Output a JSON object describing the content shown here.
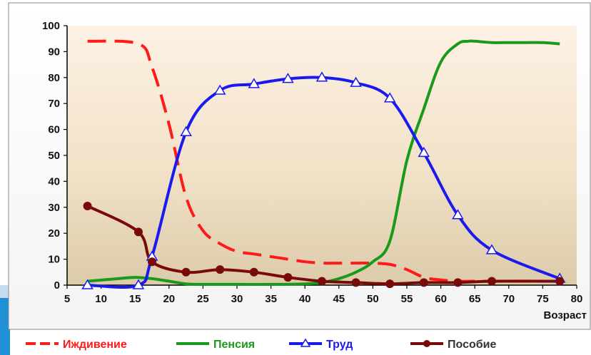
{
  "chart_data": {
    "type": "line",
    "title": "",
    "xlabel": "Возраст",
    "ylabel": "",
    "xlim": [
      5,
      80
    ],
    "ylim": [
      0,
      100
    ],
    "x_ticks": [
      5,
      10,
      15,
      20,
      25,
      30,
      35,
      40,
      45,
      50,
      55,
      60,
      65,
      70,
      75,
      80
    ],
    "y_ticks": [
      0,
      10,
      20,
      30,
      40,
      50,
      60,
      70,
      80,
      90,
      100
    ],
    "grid": false,
    "legend_position": "bottom",
    "series": [
      {
        "name": "Иждивение",
        "color": "#ff1a1a",
        "style": "dashed",
        "marker": "none",
        "x": [
          8,
          15.5,
          17.5,
          20,
          22.5,
          25,
          27.5,
          30,
          32.5,
          35,
          37.5,
          40,
          42.5,
          45,
          47.5,
          50,
          52.5,
          55,
          57.5,
          60,
          62.5,
          65,
          67.5,
          70,
          72.5,
          75,
          77.5
        ],
        "y": [
          94,
          93,
          84,
          62,
          34,
          21,
          16,
          13,
          12,
          11,
          10,
          9,
          8.5,
          8.5,
          8.5,
          8.5,
          8,
          6,
          3,
          2,
          1.5,
          1.5,
          1.5,
          1.5,
          1.5,
          1.5,
          1.5
        ]
      },
      {
        "name": "Пенсия",
        "color": "#1a9a1a",
        "style": "solid",
        "marker": "none",
        "x": [
          8,
          12.5,
          15,
          17.5,
          20,
          22.5,
          25,
          30,
          35,
          40,
          42.5,
          45,
          47.5,
          50,
          52.5,
          55,
          57.5,
          60,
          62.5,
          64,
          65,
          67.5,
          70,
          72.5,
          75,
          77.5
        ],
        "y": [
          1.5,
          2.5,
          3,
          2.5,
          1.5,
          0.5,
          0.3,
          0.3,
          0.3,
          0.5,
          1,
          2.5,
          5,
          9,
          17,
          48,
          68,
          86,
          93,
          94,
          94,
          93.5,
          93.5,
          93.5,
          93.5,
          93
        ]
      },
      {
        "name": "Труд",
        "color": "#1a1aee",
        "style": "solid",
        "marker": "triangle",
        "x": [
          8,
          15.5,
          17.5,
          22.5,
          27.5,
          32.5,
          37.5,
          42.5,
          47.5,
          52.5,
          57.5,
          62.5,
          67.5,
          77.5
        ],
        "y": [
          0,
          0,
          11,
          59,
          75,
          77.5,
          79.5,
          80,
          78,
          72,
          51,
          27,
          13.5,
          2.5
        ]
      },
      {
        "name": "Пособие",
        "color": "#7a0a0a",
        "style": "solid",
        "marker": "circle",
        "x": [
          8,
          15.5,
          17.5,
          22.5,
          27.5,
          32.5,
          37.5,
          42.5,
          47.5,
          52.5,
          57.5,
          62.5,
          67.5,
          77.5
        ],
        "y": [
          30.5,
          20.5,
          9,
          5,
          6,
          5,
          3,
          1.5,
          1,
          0.5,
          1,
          1,
          1.5,
          1.5
        ]
      }
    ]
  }
}
